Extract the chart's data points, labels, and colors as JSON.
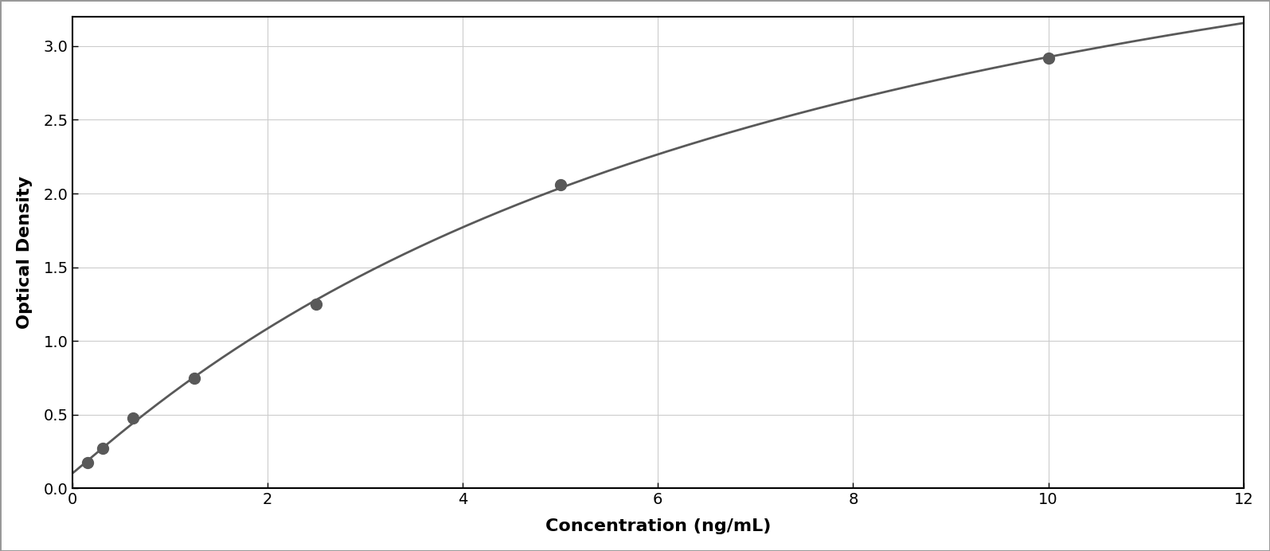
{
  "x_data": [
    0.156,
    0.313,
    0.625,
    1.25,
    2.5,
    5.0,
    10.0
  ],
  "y_data": [
    0.175,
    0.27,
    0.48,
    0.75,
    1.25,
    2.06,
    2.92
  ],
  "xlabel": "Concentration (ng/mL)",
  "ylabel": "Optical Density",
  "xlim": [
    0,
    12
  ],
  "ylim": [
    0,
    3.2
  ],
  "xticks": [
    0,
    2,
    4,
    6,
    8,
    10,
    12
  ],
  "yticks": [
    0,
    0.5,
    1.0,
    1.5,
    2.0,
    2.5,
    3.0
  ],
  "marker_color": "#595959",
  "line_color": "#595959",
  "background_color": "#ffffff",
  "plot_bg_color": "#ffffff",
  "grid_color": "#cccccc",
  "xlabel_fontsize": 16,
  "ylabel_fontsize": 16,
  "tick_fontsize": 14,
  "marker_size": 10,
  "line_width": 2.0,
  "figure_border_color": "#999999"
}
